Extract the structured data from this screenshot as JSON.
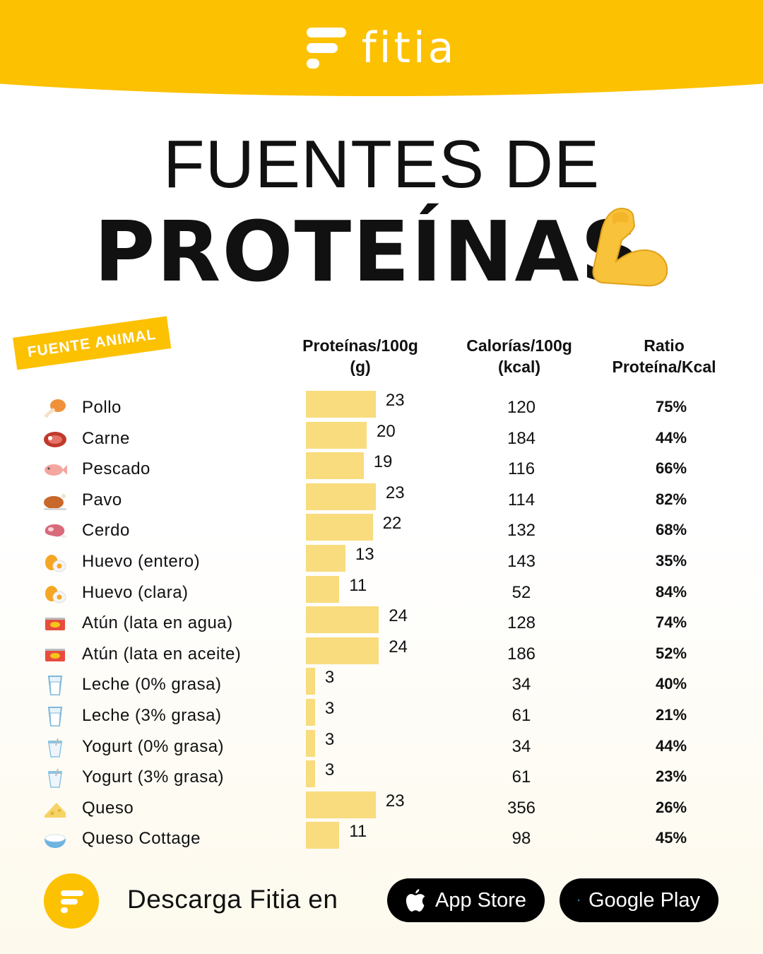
{
  "brand": {
    "name": "fitia"
  },
  "title": {
    "line1": "FUENTES DE",
    "line2": "PROTEÍNAS"
  },
  "section_tag": "FUENTE ANIMAL",
  "columns": {
    "protein": [
      "Proteínas/100g",
      "(g)"
    ],
    "calories": [
      "Calorías/100g",
      "(kcal)"
    ],
    "ratio": [
      "Ratio",
      "Proteína/Kcal"
    ]
  },
  "colors": {
    "accent": "#fcc100",
    "bar": "#f8dc7d",
    "text": "#111111"
  },
  "chart_data": {
    "type": "bar",
    "categories": [
      "Pollo",
      "Carne",
      "Pescado",
      "Pavo",
      "Cerdo",
      "Huevo (entero)",
      "Huevo (clara)",
      "Atún (lata en agua)",
      "Atún (lata en aceite)",
      "Leche (0% grasa)",
      "Leche (3% grasa)",
      "Yogurt (0% grasa)",
      "Yogurt (3% grasa)",
      "Queso",
      "Queso Cottage"
    ],
    "icons": [
      "drumstick-icon",
      "meat-icon",
      "fish-icon",
      "roast-turkey-icon",
      "pork-cut-icon",
      "egg-icon",
      "egg-icon",
      "tuna-can-icon",
      "tuna-can-icon",
      "milk-glass-icon",
      "milk-glass-icon",
      "yogurt-icon",
      "yogurt-icon",
      "cheese-icon",
      "cottage-cheese-icon"
    ],
    "values": [
      23,
      20,
      19,
      23,
      22,
      13,
      11,
      24,
      24,
      3,
      3,
      3,
      3,
      23,
      11
    ],
    "calories": [
      "120",
      "184",
      "116",
      "114",
      "132",
      "143",
      "52",
      "128",
      "186",
      "34",
      "61",
      "34",
      "61",
      "356",
      "98"
    ],
    "ratios": [
      "75%",
      "44%",
      "66%",
      "82%",
      "68%",
      "35%",
      "84%",
      "74%",
      "52%",
      "40%",
      "21%",
      "44%",
      "23%",
      "26%",
      "45%"
    ],
    "xlim": [
      0,
      24
    ],
    "grid": false
  },
  "footer": {
    "download_text": "Descarga Fitia en",
    "app_store_label": "App Store",
    "google_play_label": "Google Play"
  }
}
